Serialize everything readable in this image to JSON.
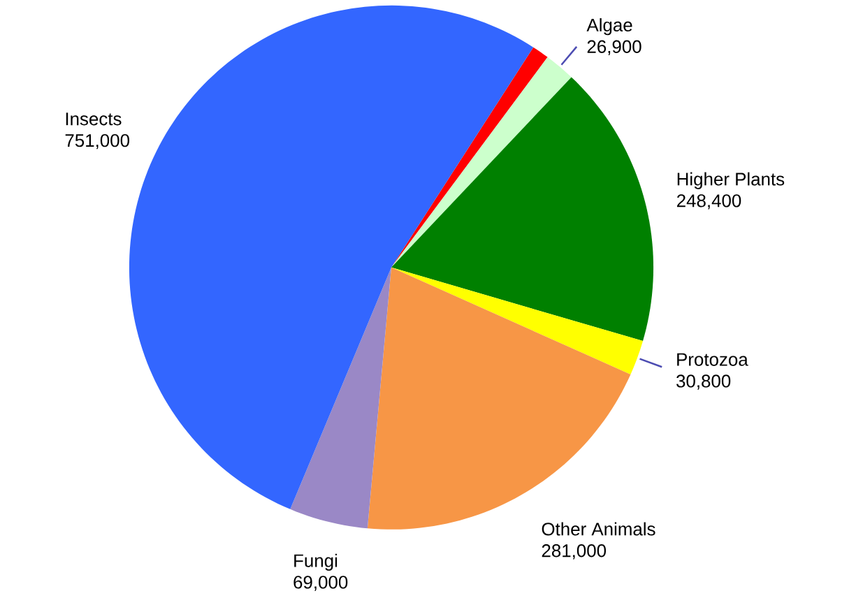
{
  "chart_data": {
    "type": "pie",
    "categories": [
      null,
      "Algae",
      "Higher Plants",
      "Protozoa",
      "Other Animals",
      "Fungi",
      "Insects"
    ],
    "values": [
      15000,
      26900,
      248400,
      30800,
      281000,
      69000,
      751000
    ],
    "value_labels": [
      null,
      "26,900",
      "248,400",
      "30,800",
      "281,000",
      "69,000",
      "751,000"
    ],
    "colors": [
      "#ff0000",
      "#ccffcc",
      "#008000",
      "#ffff00",
      "#f79646",
      "#9a88c6",
      "#3366ff"
    ]
  }
}
